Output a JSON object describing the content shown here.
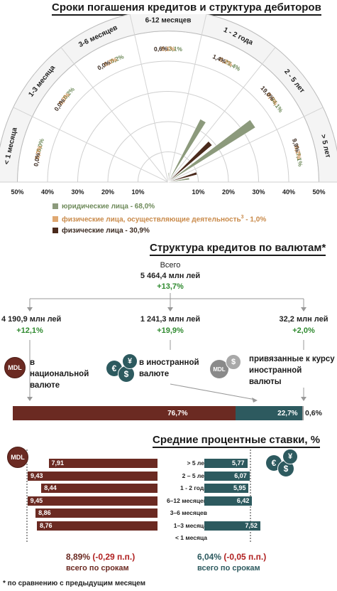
{
  "section1": {
    "title": "Сроки погашения кредитов и структура дебиторов",
    "chart_data": {
      "type": "polar-bar",
      "categories": [
        "< 1 месяца",
        "1-3 месяца",
        "3-6 месяцев",
        "6-12 месяцев",
        "1 - 2 года",
        "2 - 5 лет",
        "> 5 лет"
      ],
      "series": [
        {
          "name": "юридические лица - 68,0%",
          "color": "#8c9a7c",
          "values": [
            0.0,
            0.2,
            0.2,
            3.1,
            23.4,
            34.1,
            7.1
          ]
        },
        {
          "name": "физические лица, осуществляющие деятельность³ - 1,0%",
          "color": "#e0a871",
          "values": [
            0.0,
            0.0,
            0.0,
            0.1,
            0.2,
            0.5,
            0.2
          ]
        },
        {
          "name": "физические лица - 30,9%",
          "color": "#4a2a1c",
          "values": [
            0.0,
            0.0,
            0.0,
            0.6,
            1.4,
            19.0,
            9.9
          ]
        }
      ],
      "value_labels": [
        [
          "0,0%",
          "0,2%",
          "0,2%",
          "3,1%",
          "23,4%",
          "34,1%",
          "7,1%"
        ],
        [
          "0,0%",
          "0,0%",
          "0,0%",
          "0,1%",
          "0,2%",
          "0,5%",
          "0,2%"
        ],
        [
          "0,0%",
          "0,0%",
          "0,0%",
          "0,6%",
          "1,4%",
          "19,0%",
          "9,9%"
        ]
      ],
      "axis_ticks": [
        "50%",
        "40%",
        "30%",
        "20%",
        "10%",
        "10%",
        "20%",
        "30%",
        "40%",
        "50%"
      ]
    },
    "legend": [
      {
        "label": "юридические лица - 68,0%",
        "color": "#8c9a7c"
      },
      {
        "label_main": "физические лица, осуществляющие деятельность",
        "sup": "3",
        "label_tail": " - 1,0%",
        "color": "#e0a871"
      },
      {
        "label": "физические лица - 30,9%",
        "color": "#4a2a1c"
      }
    ]
  },
  "section2": {
    "title": "Структура кредитов по валютам*",
    "total": {
      "label": "Всего",
      "value": "5 464,4 млн лей",
      "change": "+13,7%"
    },
    "groups": [
      {
        "value": "4 190,9 млн лей",
        "change": "+12,1%",
        "desc": "в национальной валюте",
        "icon": "MDL"
      },
      {
        "value": "1 241,3 млн лей",
        "change": "+19,9%",
        "desc": "в иностранной валюте",
        "icon": "€ $ ¥"
      },
      {
        "value": "32,2 млн лей",
        "change": "+2,0%",
        "desc": "привязанные к курсу иностранной валюты",
        "icon": "MDL $"
      }
    ],
    "share_bar": [
      {
        "label": "76,7%",
        "value": 76.7,
        "color": "#6b2a22"
      },
      {
        "label": "22,7%",
        "value": 22.7,
        "color": "#2d5a5f"
      },
      {
        "label": "0,6%",
        "value": 0.6,
        "color": "#9a9a9a"
      }
    ]
  },
  "section3": {
    "title": "Средние процентные ставки, %",
    "mdl_icon": "MDL",
    "fx_icon": "€ $ ¥",
    "chart_data": {
      "type": "bar",
      "categories": [
        "> 5 лет",
        "2 – 5 лет",
        "1 - 2 года",
        "6–12 месяцев",
        "3–6 месяцев",
        "1–3 месяца",
        "< 1 месяца"
      ],
      "series": [
        {
          "name": "MDL",
          "color": "#6b2a22",
          "values": [
            7.91,
            9.43,
            8.44,
            9.45,
            8.86,
            8.76,
            null
          ],
          "labels": [
            "7,91",
            "9,43",
            "8,44",
            "9,45",
            "8,86",
            "8,76",
            ""
          ]
        },
        {
          "name": "€ $ ¥",
          "color": "#2d5a5f",
          "values": [
            5.77,
            6.07,
            5.95,
            6.42,
            null,
            7.52,
            null
          ],
          "labels": [
            "5,77",
            "6,07",
            "5,95",
            "6,42",
            "",
            "7,52",
            ""
          ]
        }
      ]
    },
    "summary_mdl": {
      "value": "8,89%",
      "change": "(-0,29 п.п.)",
      "caption": "всего по срокам"
    },
    "summary_fx": {
      "value": "6,04%",
      "change": "(-0,05 п.п.)",
      "caption": "всего по срокам"
    },
    "footnote": "* по сравнению с предыдущим месяцем"
  }
}
